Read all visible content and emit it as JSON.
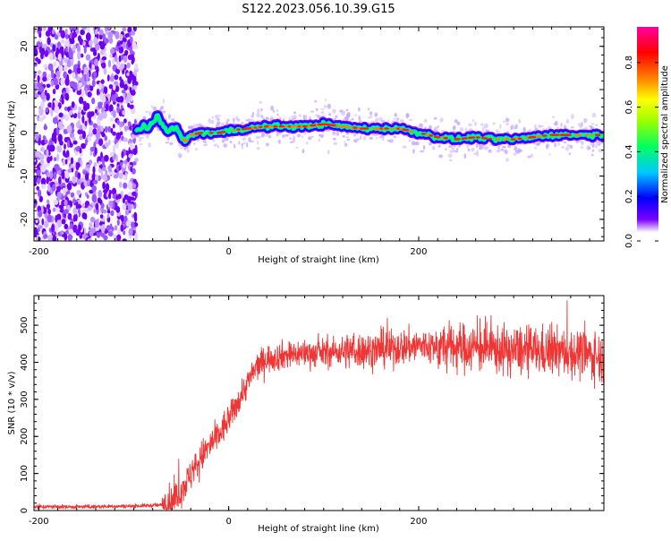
{
  "figure_title": "S122.2023.056.10.39.G15",
  "chart_data": [
    {
      "type": "heatmap",
      "name": "spectrogram",
      "xlabel": "Height of straight line (km)",
      "ylabel": "Frequency (Hz)",
      "xlim": [
        -205,
        395
      ],
      "ylim": [
        -25,
        24.5
      ],
      "xticks": [
        -200,
        0,
        200
      ],
      "yticks": [
        -20,
        -10,
        0,
        10,
        20
      ],
      "colorbar": {
        "label": "Normalized spectral amplitude",
        "range": [
          0,
          0.96
        ],
        "ticks": [
          "0.0",
          "0.2",
          "0.4",
          "0.6",
          "0.8"
        ],
        "tick_values": [
          0,
          0.2,
          0.4,
          0.6,
          0.8
        ],
        "colormap": [
          "#ffffff",
          "#7a00ff",
          "#0000ff",
          "#00c8ff",
          "#00ff60",
          "#9bff00",
          "#ffff00",
          "#ff8000",
          "#ff0000",
          "#ff00a0"
        ],
        "placement": "right"
      },
      "noise_region_x": [
        -205,
        -97
      ],
      "signal_ridge": {
        "x": [
          -97,
          -90,
          -85,
          -80,
          -75,
          -70,
          -65,
          -60,
          -55,
          -50,
          -45,
          -40,
          -30,
          -20,
          -10,
          0,
          20,
          40,
          60,
          80,
          100,
          120,
          140,
          160,
          180,
          200,
          220,
          240,
          260,
          280,
          300,
          320,
          340,
          360,
          380,
          395
        ],
        "frequency_hz": [
          0.5,
          1.5,
          1.0,
          2.0,
          4.0,
          2.0,
          0.5,
          1.0,
          1.0,
          -1.0,
          -2.0,
          -0.5,
          0.0,
          0.0,
          0.0,
          0.5,
          1.0,
          1.5,
          1.5,
          1.5,
          2.0,
          1.5,
          1.0,
          1.0,
          1.0,
          0.0,
          -1.0,
          -1.5,
          -1.0,
          -1.5,
          -1.5,
          -1.0,
          -0.5,
          -0.5,
          -0.5,
          -0.5
        ]
      },
      "grid": false
    },
    {
      "type": "line",
      "name": "snr",
      "xlabel": "Height of straight line (km)",
      "ylabel": "SNR (10 * v/v)",
      "xlim": [
        -205,
        395
      ],
      "ylim": [
        0,
        580
      ],
      "xticks": [
        -200,
        0,
        200
      ],
      "yticks": [
        0,
        100,
        200,
        300,
        400,
        500
      ],
      "color": "#f03535",
      "trend": {
        "x": [
          -205,
          -150,
          -100,
          -70,
          -60,
          -50,
          -40,
          -30,
          -20,
          -10,
          0,
          10,
          20,
          30,
          40,
          60,
          80,
          100,
          120,
          140,
          160,
          180,
          200,
          220,
          240,
          260,
          280,
          300,
          320,
          340,
          360,
          380,
          395
        ],
        "y": [
          10,
          10,
          12,
          15,
          25,
          55,
          95,
          140,
          175,
          205,
          245,
          295,
          345,
          390,
          410,
          420,
          425,
          425,
          430,
          432,
          435,
          440,
          445,
          440,
          440,
          440,
          435,
          430,
          430,
          430,
          425,
          420,
          410
        ]
      },
      "grid": false
    }
  ]
}
